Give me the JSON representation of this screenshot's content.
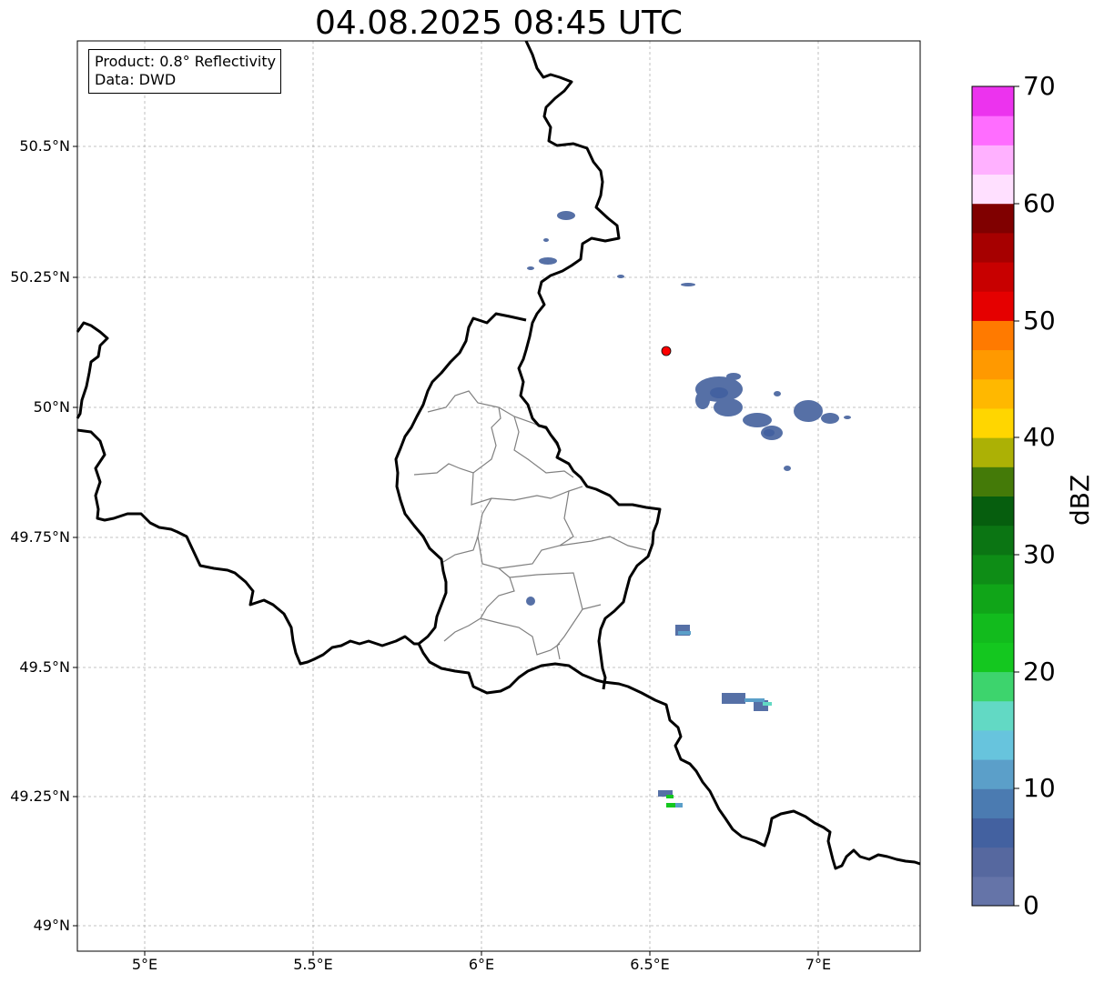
{
  "title": "04.08.2025 08:45 UTC",
  "info_box": {
    "product": "Product: 0.8° Reflectivity",
    "data": "Data: DWD"
  },
  "map": {
    "lon_range": [
      4.8,
      7.3
    ],
    "lat_range": [
      48.95,
      50.7
    ],
    "lon_ticks": [
      "5°E",
      "5.5°E",
      "6°E",
      "6.5°E",
      "7°E"
    ],
    "lat_ticks": [
      "50.5°N",
      "50.25°N",
      "50°N",
      "49.75°N",
      "49.5°N",
      "49.25°N",
      "49°N"
    ],
    "gridlines": true,
    "radar_site": {
      "lon": 6.55,
      "lat": 50.11,
      "color": "#ff0000"
    }
  },
  "colorbar": {
    "label": "dBZ",
    "ticks": [
      "0",
      "10",
      "20",
      "30",
      "40",
      "50",
      "60",
      "70"
    ],
    "range": [
      0,
      70
    ],
    "colors": [
      "#6574a8",
      "#56689f",
      "#4361a0",
      "#4b7bb1",
      "#5b9fc9",
      "#67c4dd",
      "#62d9c4",
      "#3dd46d",
      "#14c71f",
      "#12bb1d",
      "#10a518",
      "#0e8d16",
      "#0b7513",
      "#065e0e",
      "#447a08",
      "#acb105",
      "#ffd600",
      "#ffb800",
      "#ff9900",
      "#ff7a00",
      "#e50000",
      "#c80000",
      "#a60000",
      "#800000",
      "#ffe0ff",
      "#ffb1ff",
      "#ff6dff",
      "#ec33ee"
    ]
  }
}
